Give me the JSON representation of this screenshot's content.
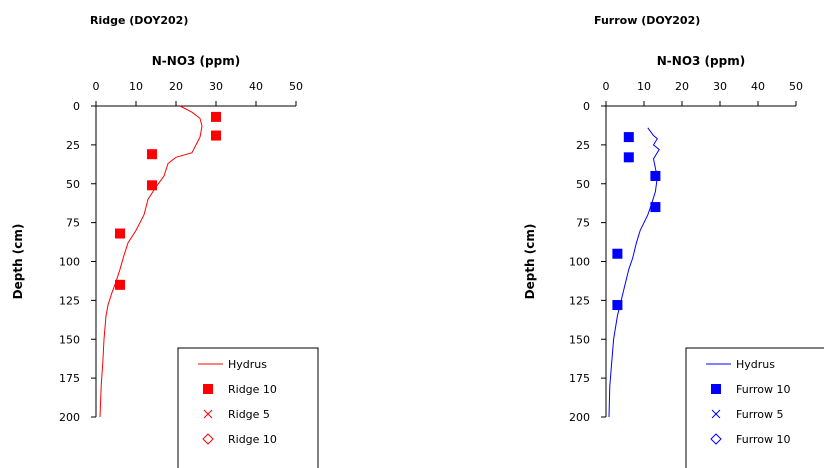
{
  "chart_data": [
    {
      "type": "scatter",
      "title": "Ridge (DOY202)",
      "xlabel": "N-NO3 (ppm)",
      "ylabel": "Depth (cm)",
      "xlim": [
        0,
        50
      ],
      "ylim": [
        0,
        200
      ],
      "x_ticks": [
        "0",
        "10",
        "20",
        "30",
        "40",
        "50"
      ],
      "y_ticks": [
        "0",
        "25",
        "50",
        "75",
        "100",
        "125",
        "150",
        "175",
        "200"
      ],
      "line_color": "#ff0000",
      "marker_color": "#ff0000",
      "grid": false,
      "legend_position": "bottom-right",
      "series": [
        {
          "name": "Hydrus",
          "kind": "line",
          "points": [
            [
              21,
              0
            ],
            [
              24,
              4
            ],
            [
              26,
              8
            ],
            [
              26.5,
              13
            ],
            [
              26,
              20
            ],
            [
              24,
              30
            ],
            [
              20,
              33
            ],
            [
              18,
              37
            ],
            [
              17,
              45
            ],
            [
              15,
              52
            ],
            [
              13,
              60
            ],
            [
              12,
              70
            ],
            [
              10,
              80
            ],
            [
              8,
              88
            ],
            [
              7,
              96
            ],
            [
              6,
              105
            ],
            [
              5,
              113
            ],
            [
              4,
              120
            ],
            [
              3,
              128
            ],
            [
              2.5,
              135
            ],
            [
              2,
              150
            ],
            [
              1.7,
              165
            ],
            [
              1.3,
              180
            ],
            [
              1,
              200
            ]
          ]
        },
        {
          "name": "Ridge 10",
          "kind": "marker",
          "marker": "square",
          "points": [
            [
              30,
              7
            ],
            [
              30,
              19
            ],
            [
              14,
              31
            ],
            [
              14,
              51
            ],
            [
              6,
              82
            ],
            [
              6,
              115
            ]
          ]
        },
        {
          "name": "Ridge 5",
          "kind": "marker",
          "marker": "x",
          "points": []
        },
        {
          "name": "Ridge 10",
          "kind": "marker",
          "marker": "diamond",
          "points": []
        }
      ]
    },
    {
      "type": "scatter",
      "title": "Furrow (DOY202)",
      "xlabel": "N-NO3 (ppm)",
      "ylabel": "Depth (cm)",
      "xlim": [
        0,
        50
      ],
      "ylim": [
        0,
        200
      ],
      "x_ticks": [
        "0",
        "10",
        "20",
        "30",
        "40",
        "50"
      ],
      "y_ticks": [
        "0",
        "25",
        "50",
        "75",
        "100",
        "125",
        "150",
        "175",
        "200"
      ],
      "line_color": "#0000ff",
      "marker_color": "#0000ff",
      "grid": false,
      "legend_position": "bottom-right",
      "series": [
        {
          "name": "Hydrus",
          "kind": "line",
          "points": [
            [
              11,
              14
            ],
            [
              12.5,
              19
            ],
            [
              13.5,
              21
            ],
            [
              12.5,
              25
            ],
            [
              14,
              28
            ],
            [
              12.5,
              34
            ],
            [
              13,
              40
            ],
            [
              13.5,
              46
            ],
            [
              13,
              55
            ],
            [
              12,
              63
            ],
            [
              11,
              70
            ],
            [
              9,
              80
            ],
            [
              8,
              88
            ],
            [
              7,
              98
            ],
            [
              6,
              105
            ],
            [
              5,
              115
            ],
            [
              4,
              125
            ],
            [
              3,
              135
            ],
            [
              2,
              150
            ],
            [
              1.5,
              165
            ],
            [
              1,
              180
            ],
            [
              0.8,
              200
            ]
          ]
        },
        {
          "name": "Furrow 10",
          "kind": "marker",
          "marker": "square",
          "points": [
            [
              6,
              20
            ],
            [
              6,
              33
            ],
            [
              13,
              45
            ],
            [
              13,
              65
            ],
            [
              3,
              95
            ],
            [
              3,
              128
            ]
          ]
        },
        {
          "name": "Furrow 5",
          "kind": "marker",
          "marker": "x",
          "points": []
        },
        {
          "name": "Furrow 10",
          "kind": "marker",
          "marker": "diamond",
          "points": []
        }
      ]
    }
  ]
}
